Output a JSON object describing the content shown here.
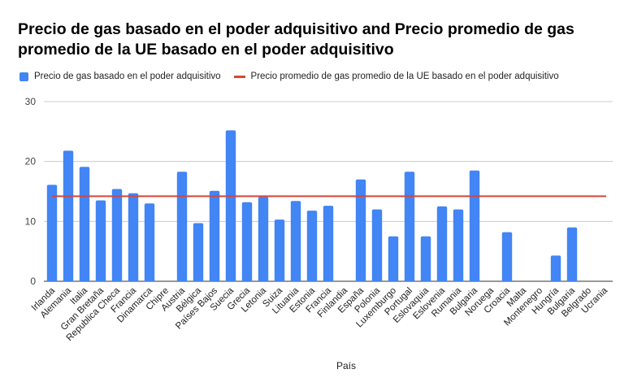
{
  "colors": {
    "bars": "#4285f4",
    "avg_line": "#db4437",
    "grid": "#cccccc",
    "axis": "#333333"
  },
  "chart_data": {
    "type": "bar",
    "title": "Precio de gas basado en el poder adquisitivo and Precio promedio de gas promedio de la UE basado en el poder adquisitivo",
    "xlabel": "País",
    "ylabel": "",
    "ylim": [
      0,
      30
    ],
    "yticks": [
      0,
      10,
      20,
      30
    ],
    "grid": true,
    "legend_position": "top-left",
    "categories": [
      "Irlanda",
      "Alemania",
      "Italia",
      "Gran Bretaña",
      "Republica Checa",
      "Francia",
      "Dinamarca",
      "Chipre",
      "Austria",
      "Bélgica",
      "Países Bajos",
      "Suecia",
      "Grecia",
      "Letonia",
      "Suiza",
      "Lituania",
      "Estonia",
      "Francia",
      "Finlandia",
      "España",
      "Polonia",
      "Luxemburgo",
      "Portugal",
      "Eslovaquia",
      "Eslovenia",
      "Rumania",
      "Bulgaria",
      "Noruega",
      "Croacia",
      "Malta",
      "Montenegro",
      "Hungría",
      "Bulgaria",
      "Belgrado",
      "Ucrania"
    ],
    "series": [
      {
        "name": "Precio de gas basado en el poder adquisitivo",
        "type": "bar",
        "values": [
          16.1,
          21.8,
          19.1,
          13.5,
          15.4,
          14.7,
          13.0,
          0,
          18.3,
          9.7,
          15.1,
          25.2,
          13.2,
          14.1,
          10.3,
          13.4,
          11.8,
          12.6,
          0,
          17.0,
          12.0,
          7.5,
          18.3,
          7.5,
          12.5,
          12.0,
          18.5,
          0,
          8.2,
          0,
          0,
          4.3,
          9.0,
          0,
          0
        ]
      },
      {
        "name": "Precio promedio de gas promedio de la UE basado en el poder adquisitivo",
        "type": "line",
        "constant": 14.2
      }
    ]
  }
}
